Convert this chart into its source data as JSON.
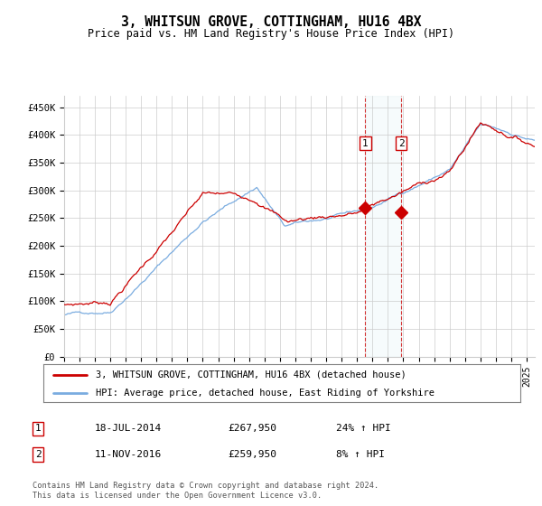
{
  "title": "3, WHITSUN GROVE, COTTINGHAM, HU16 4BX",
  "subtitle": "Price paid vs. HM Land Registry's House Price Index (HPI)",
  "ylabel_ticks": [
    "£0",
    "£50K",
    "£100K",
    "£150K",
    "£200K",
    "£250K",
    "£300K",
    "£350K",
    "£400K",
    "£450K"
  ],
  "ylim": [
    0,
    470000
  ],
  "xlim_start": 1995.0,
  "xlim_end": 2025.5,
  "legend_line1": "3, WHITSUN GROVE, COTTINGHAM, HU16 4BX (detached house)",
  "legend_line2": "HPI: Average price, detached house, East Riding of Yorkshire",
  "sale1_date": "18-JUL-2014",
  "sale1_price": "£267,950",
  "sale1_hpi": "24% ↑ HPI",
  "sale1_year": 2014.54,
  "sale1_price_val": 267950,
  "sale2_date": "11-NOV-2016",
  "sale2_price": "£259,950",
  "sale2_hpi": "8% ↑ HPI",
  "sale2_year": 2016.87,
  "sale2_price_val": 259950,
  "hpi_color": "#7aace0",
  "price_color": "#cc0000",
  "footnote": "Contains HM Land Registry data © Crown copyright and database right 2024.\nThis data is licensed under the Open Government Licence v3.0.",
  "background_color": "#ffffff",
  "grid_color": "#cccccc"
}
